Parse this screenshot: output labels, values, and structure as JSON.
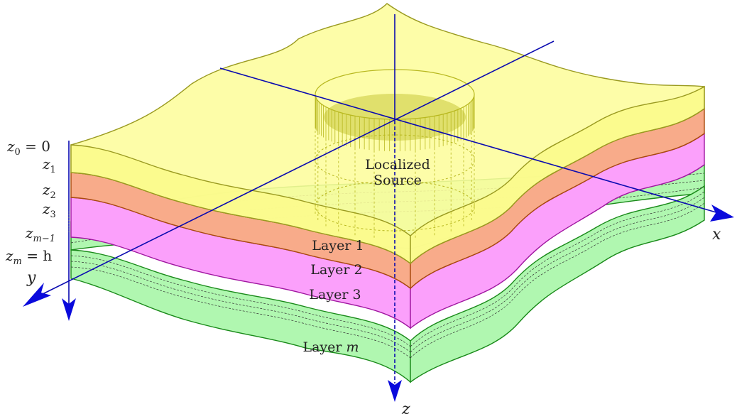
{
  "colors": {
    "layer1": "#fbfb8c",
    "layer1_top": "#fdfd9c",
    "layer1_edge": "#9a9a20",
    "layer2": "#f8ab8a",
    "layer2_edge": "#a94a0c",
    "layer3": "#fba0fb",
    "layer3_edge": "#a016a0",
    "layerm": "#b0f7b0",
    "layerm_edge": "#1a8a1a",
    "axis": "#0a0ab0",
    "arrow": "#0a0adc",
    "source_lines": "#b8b820"
  },
  "layers": [
    {
      "label": "Layer 1"
    },
    {
      "label": "Layer 2"
    },
    {
      "label": "Layer 3"
    },
    {
      "label": "Layer",
      "var": "m"
    }
  ],
  "source": {
    "line1": "Localized",
    "line2": "Source"
  },
  "depths": {
    "z0": {
      "sym": "z",
      "sub": "0",
      "suffix": " = 0"
    },
    "z1": {
      "sym": "z",
      "sub": "1"
    },
    "z2": {
      "sym": "z",
      "sub": "2"
    },
    "z3": {
      "sym": "z",
      "sub": "3"
    },
    "zm1": {
      "sym": "z",
      "sub": "m−1"
    },
    "zm": {
      "sym": "z",
      "sub": "m",
      "suffix": " = h"
    }
  },
  "axes": {
    "x": "x",
    "y": "y",
    "z": "z"
  }
}
